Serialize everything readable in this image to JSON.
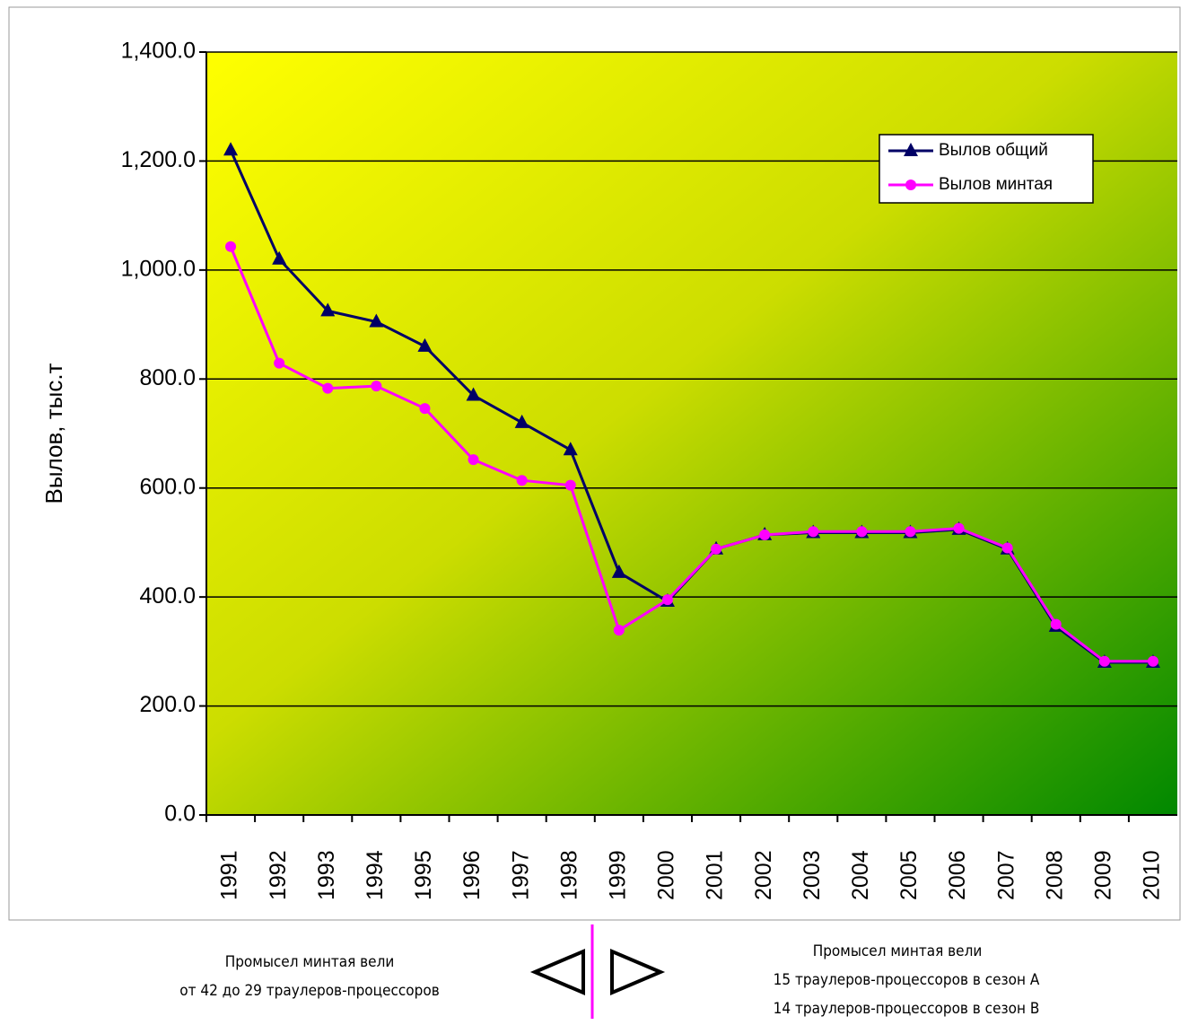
{
  "chart_data": {
    "type": "line",
    "y_label": "Вылов, тыс.т",
    "categories": [
      "1991",
      "1992",
      "1993",
      "1994",
      "1995",
      "1996",
      "1997",
      "1998",
      "1999",
      "2000",
      "2001",
      "2002",
      "2003",
      "2004",
      "2005",
      "2006",
      "2007",
      "2008",
      "2009",
      "2010"
    ],
    "series": [
      {
        "name": "Вылов общий",
        "color": "#000066",
        "marker": "triangle",
        "values": [
          1220,
          1020,
          925,
          905,
          860,
          770,
          720,
          670,
          445,
          392,
          488,
          514,
          518,
          518,
          518,
          524,
          488,
          346,
          280,
          280
        ]
      },
      {
        "name": "Вылов минтая",
        "color": "#ff00ff",
        "marker": "circle",
        "values": [
          1043,
          829,
          783,
          787,
          746,
          652,
          614,
          605,
          339,
          395,
          488,
          514,
          520,
          520,
          520,
          526,
          490,
          350,
          282,
          282
        ]
      }
    ],
    "ylim": [
      0,
      1400
    ],
    "yticks": [
      {
        "value": 0,
        "label": "0.0"
      },
      {
        "value": 200,
        "label": "200.0"
      },
      {
        "value": 400,
        "label": "400.0"
      },
      {
        "value": 600,
        "label": "600.0"
      },
      {
        "value": 800,
        "label": "800.0"
      },
      {
        "value": 1000,
        "label": "1,000.0"
      },
      {
        "value": 1200,
        "label": "1,200.0"
      },
      {
        "value": 1400,
        "label": "1,400.0"
      }
    ],
    "grid": true,
    "legend": "top-right",
    "annotations": [
      [
        "Промысел минтая вели",
        "от 42 до 29 траулеров-процессоров"
      ],
      [
        "Промысел минтая вели",
        "15 траулеров-процессоров в сезон А",
        "14 траулеров-процессоров в сезон В"
      ]
    ]
  }
}
